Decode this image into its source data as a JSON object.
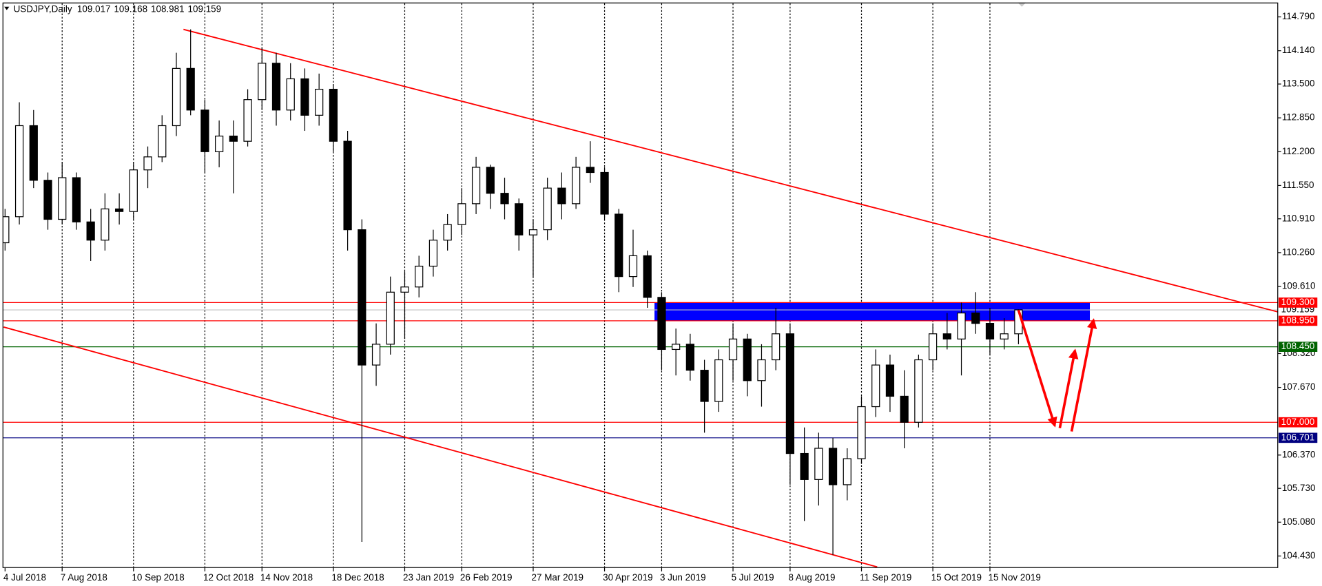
{
  "chart_data": {
    "type": "candlestick",
    "title": "USDJPY,Daily",
    "title_values": [
      "109.017",
      "109.168",
      "108.981",
      "109.159"
    ],
    "categories": [
      "4 Jul 2018",
      null,
      null,
      null,
      "7 Aug 2018",
      null,
      null,
      null,
      null,
      "10 Sep 2018",
      null,
      null,
      null,
      null,
      "12 Oct 2018",
      null,
      null,
      null,
      "14 Nov 2018",
      null,
      null,
      null,
      null,
      "18 Dec 2018",
      null,
      null,
      null,
      null,
      "23 Jan 2019",
      null,
      null,
      null,
      "26 Feb 2019",
      null,
      null,
      null,
      null,
      "27 Mar 2019",
      null,
      null,
      null,
      null,
      "30 Apr 2019",
      null,
      null,
      null,
      "3 Jun 2019",
      null,
      null,
      null,
      null,
      "5 Jul 2019",
      null,
      null,
      null,
      "8 Aug 2019",
      null,
      null,
      null,
      null,
      "11 Sep 2019",
      null,
      null,
      null,
      null,
      "15 Oct 2019",
      null,
      null,
      null,
      "15 Nov 2019",
      null,
      null
    ],
    "open": [
      110.45,
      110.95,
      112.7,
      111.65,
      110.9,
      111.7,
      110.85,
      110.5,
      111.1,
      111.05,
      111.85,
      112.1,
      112.7,
      113.8,
      113.0,
      112.2,
      112.5,
      112.4,
      113.2,
      113.9,
      113.0,
      113.6,
      112.9,
      113.4,
      112.4,
      110.7,
      108.1,
      108.5,
      109.5,
      109.6,
      110.0,
      110.5,
      110.8,
      111.2,
      111.9,
      111.4,
      111.2,
      110.6,
      110.7,
      111.5,
      111.2,
      111.9,
      111.8,
      111.0,
      109.8,
      110.2,
      109.4,
      108.4,
      108.5,
      108.0,
      107.4,
      108.2,
      108.6,
      107.8,
      108.2,
      108.7,
      106.4,
      105.9,
      106.5,
      105.8,
      106.3,
      107.3,
      108.1,
      107.5,
      107.0,
      108.2,
      108.7,
      108.6,
      109.1,
      108.9,
      108.6,
      108.7
    ],
    "high": [
      111.1,
      113.15,
      113.0,
      111.8,
      112.0,
      111.8,
      111.1,
      111.4,
      111.4,
      112.0,
      112.3,
      112.9,
      114.1,
      114.55,
      113.2,
      112.8,
      112.8,
      113.4,
      114.2,
      114.1,
      113.9,
      113.8,
      113.7,
      113.5,
      112.6,
      110.9,
      108.9,
      109.8,
      109.9,
      110.2,
      110.7,
      111.0,
      111.5,
      112.1,
      111.95,
      111.7,
      111.3,
      110.9,
      111.7,
      111.8,
      112.1,
      112.4,
      111.9,
      111.1,
      110.7,
      110.3,
      109.5,
      108.8,
      108.7,
      108.2,
      108.4,
      108.9,
      108.7,
      108.5,
      109.2,
      108.9,
      106.9,
      106.8,
      106.7,
      106.5,
      107.5,
      108.4,
      108.3,
      108.0,
      108.3,
      108.9,
      109.1,
      109.3,
      109.5,
      109.2,
      109.0,
      109.17
    ],
    "low": [
      110.3,
      110.8,
      111.5,
      110.7,
      110.8,
      110.7,
      110.1,
      110.3,
      110.8,
      110.9,
      111.5,
      112.0,
      112.5,
      112.9,
      111.8,
      111.9,
      111.4,
      112.3,
      113.0,
      112.7,
      112.8,
      112.6,
      112.7,
      112.2,
      110.3,
      104.7,
      107.7,
      108.3,
      108.6,
      109.4,
      109.8,
      110.3,
      110.6,
      111.0,
      111.1,
      110.9,
      110.3,
      109.8,
      110.5,
      110.9,
      111.1,
      111.6,
      110.9,
      109.5,
      109.6,
      109.2,
      108.0,
      107.9,
      107.8,
      106.8,
      107.2,
      107.8,
      107.5,
      107.3,
      108.0,
      105.8,
      105.1,
      105.4,
      104.45,
      105.5,
      106.2,
      107.1,
      107.2,
      106.5,
      106.9,
      108.0,
      108.4,
      107.9,
      108.7,
      108.3,
      108.4,
      108.5
    ],
    "close": [
      110.95,
      112.7,
      111.65,
      110.9,
      111.7,
      110.85,
      110.5,
      111.1,
      111.05,
      111.85,
      112.1,
      112.7,
      113.8,
      113.0,
      112.2,
      112.5,
      112.4,
      113.2,
      113.9,
      113.0,
      113.6,
      112.9,
      113.4,
      112.4,
      110.7,
      108.1,
      108.5,
      109.5,
      109.6,
      110.0,
      110.5,
      110.8,
      111.2,
      111.9,
      111.4,
      111.2,
      110.6,
      110.7,
      111.5,
      111.2,
      111.9,
      111.8,
      111.0,
      109.8,
      110.2,
      109.4,
      108.4,
      108.5,
      108.0,
      107.4,
      108.2,
      108.6,
      107.8,
      108.2,
      108.7,
      106.4,
      105.9,
      106.5,
      105.8,
      106.3,
      107.3,
      108.1,
      107.5,
      107.0,
      108.2,
      108.7,
      108.6,
      109.1,
      108.9,
      108.6,
      108.7,
      109.16
    ],
    "ylim": [
      104.2,
      115.05
    ],
    "yticks": [
      {
        "value": 114.79,
        "label": "114.790"
      },
      {
        "value": 114.14,
        "label": "114.140"
      },
      {
        "value": 113.5,
        "label": "113.500"
      },
      {
        "value": 112.85,
        "label": "112.850"
      },
      {
        "value": 112.2,
        "label": "112.200"
      },
      {
        "value": 111.55,
        "label": "111.550"
      },
      {
        "value": 110.91,
        "label": "110.910"
      },
      {
        "value": 110.26,
        "label": "110.260"
      },
      {
        "value": 109.61,
        "label": "109.610"
      },
      {
        "value": 108.32,
        "label": "108.320"
      },
      {
        "value": 107.67,
        "label": "107.670"
      },
      {
        "value": 106.37,
        "label": "106.370"
      },
      {
        "value": 105.73,
        "label": "105.730"
      },
      {
        "value": 105.08,
        "label": "105.080"
      },
      {
        "value": 104.43,
        "label": "104.430"
      }
    ],
    "grid": true,
    "levels": [
      {
        "value": 109.159,
        "label": "109.159",
        "color": "#c0c0c0",
        "text_color": "#000000"
      },
      {
        "value": 109.3,
        "label": "109.300",
        "color": "#ff0000",
        "text_color": "#ffffff"
      },
      {
        "value": 108.95,
        "label": "108.950",
        "color": "#ff0000",
        "text_color": "#ffffff"
      },
      {
        "value": 108.45,
        "label": "108.450",
        "color": "#006400",
        "text_color": "#ffffff"
      },
      {
        "value": 107.0,
        "label": "107.000",
        "color": "#ff0000",
        "text_color": "#ffffff"
      },
      {
        "value": 106.701,
        "label": "106.701",
        "color": "#000080",
        "text_color": "#ffffff"
      }
    ],
    "zones": [
      {
        "color": "#0000ff",
        "x": [
          45.5,
          76
        ],
        "y": [
          108.95,
          109.3
        ]
      }
    ],
    "trendlines": [
      {
        "color": "#ff0000",
        "points": [
          [
            12.5,
            114.55
          ],
          [
            92.3,
            108.9
          ]
        ]
      },
      {
        "color": "#ff0000",
        "points": [
          [
            -0.1,
            108.83
          ],
          [
            61.1,
            104.22
          ]
        ]
      }
    ]
  }
}
